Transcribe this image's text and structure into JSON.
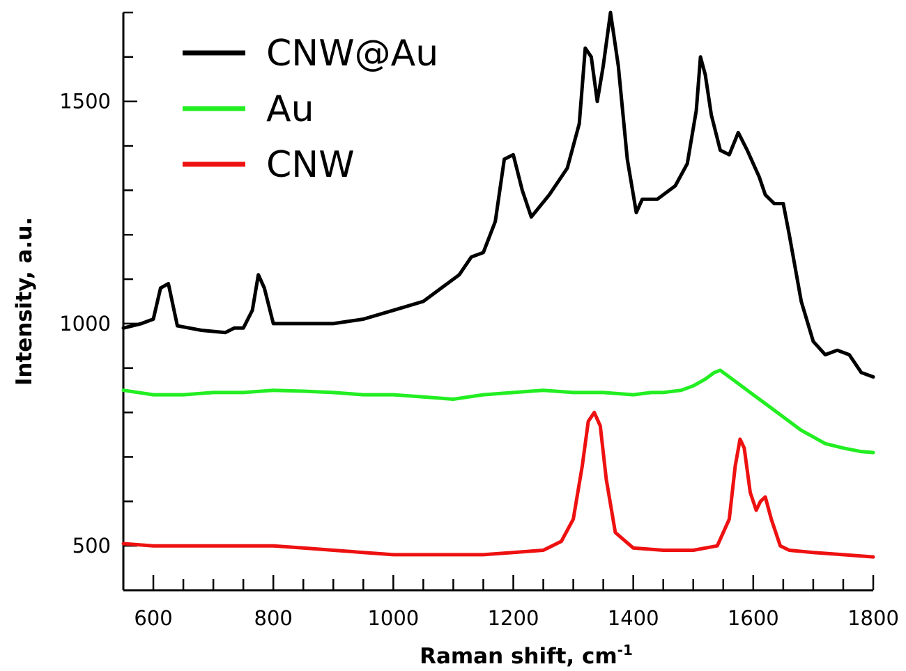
{
  "chart_data": {
    "type": "line",
    "title": "",
    "xlabel": "Raman shift, cm",
    "xlabel_superscript": "-1",
    "ylabel": "Intensity, a.u.",
    "xlim": [
      550,
      1800
    ],
    "ylim": [
      400,
      1700
    ],
    "x_ticks": [
      600,
      800,
      1000,
      1200,
      1400,
      1600,
      1800
    ],
    "x_minor_step": 50,
    "y_ticks": [
      500,
      1000,
      1500
    ],
    "y_minor_step": 100,
    "grid": false,
    "legend_position": "top-left",
    "series": [
      {
        "name": "CNW@Au",
        "color": "#000000",
        "x": [
          550,
          580,
          600,
          612,
          625,
          640,
          680,
          720,
          735,
          750,
          765,
          775,
          785,
          800,
          850,
          900,
          950,
          1000,
          1050,
          1090,
          1110,
          1130,
          1150,
          1170,
          1185,
          1200,
          1215,
          1230,
          1260,
          1290,
          1310,
          1320,
          1330,
          1340,
          1350,
          1362,
          1375,
          1390,
          1405,
          1415,
          1440,
          1470,
          1490,
          1505,
          1512,
          1520,
          1530,
          1545,
          1560,
          1575,
          1590,
          1600,
          1610,
          1620,
          1635,
          1650,
          1660,
          1680,
          1700,
          1720,
          1740,
          1760,
          1780,
          1800
        ],
        "values": [
          990,
          1000,
          1010,
          1080,
          1090,
          995,
          985,
          980,
          990,
          990,
          1030,
          1110,
          1080,
          1000,
          1000,
          1000,
          1010,
          1030,
          1050,
          1090,
          1110,
          1150,
          1160,
          1230,
          1370,
          1380,
          1300,
          1240,
          1290,
          1350,
          1450,
          1620,
          1600,
          1500,
          1580,
          1700,
          1580,
          1370,
          1250,
          1280,
          1280,
          1310,
          1360,
          1480,
          1600,
          1560,
          1470,
          1390,
          1380,
          1430,
          1390,
          1360,
          1330,
          1290,
          1270,
          1270,
          1200,
          1050,
          960,
          930,
          940,
          930,
          890,
          880
        ]
      },
      {
        "name": "Au",
        "color": "#22ee22",
        "x": [
          550,
          600,
          650,
          700,
          750,
          800,
          850,
          900,
          950,
          1000,
          1050,
          1100,
          1150,
          1200,
          1250,
          1300,
          1350,
          1400,
          1430,
          1450,
          1480,
          1500,
          1520,
          1535,
          1545,
          1560,
          1580,
          1600,
          1620,
          1650,
          1680,
          1700,
          1720,
          1750,
          1780,
          1800
        ],
        "values": [
          850,
          840,
          840,
          845,
          845,
          850,
          848,
          845,
          840,
          840,
          835,
          830,
          840,
          845,
          850,
          845,
          845,
          840,
          845,
          845,
          850,
          860,
          875,
          890,
          895,
          880,
          860,
          840,
          820,
          790,
          760,
          745,
          730,
          720,
          712,
          710
        ]
      },
      {
        "name": "CNW",
        "color": "#ee1111",
        "x": [
          550,
          600,
          650,
          700,
          750,
          800,
          850,
          900,
          950,
          1000,
          1050,
          1100,
          1150,
          1200,
          1250,
          1280,
          1300,
          1315,
          1325,
          1335,
          1345,
          1355,
          1370,
          1400,
          1450,
          1500,
          1540,
          1560,
          1570,
          1578,
          1585,
          1595,
          1605,
          1612,
          1620,
          1630,
          1645,
          1660,
          1700,
          1750,
          1800
        ],
        "values": [
          505,
          500,
          500,
          500,
          500,
          500,
          495,
          490,
          485,
          480,
          480,
          480,
          480,
          485,
          490,
          510,
          560,
          680,
          780,
          800,
          770,
          650,
          530,
          495,
          490,
          490,
          500,
          560,
          680,
          740,
          720,
          620,
          580,
          600,
          610,
          560,
          500,
          490,
          485,
          480,
          475
        ]
      }
    ]
  }
}
